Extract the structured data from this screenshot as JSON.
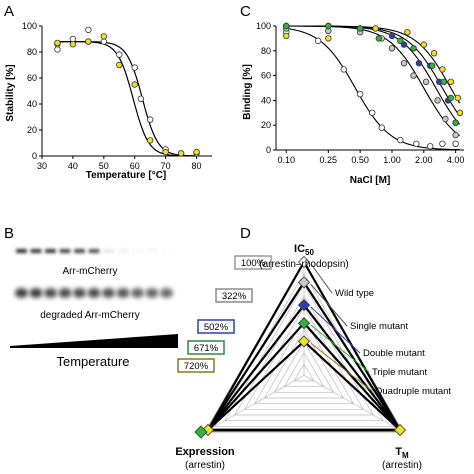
{
  "panels": {
    "A": "A",
    "B": "B",
    "C": "C",
    "D": "D"
  },
  "colors": {
    "yellow": "#f2e21e",
    "green": "#2fb53a",
    "blue": "#2b3fb6",
    "white": "#ffffff",
    "grey": "#c8c8c8",
    "wt_box": "#9a9a9a",
    "single_box": "#8a8a8a",
    "double_box": "#2b3fb6",
    "triple_box": "#2f8a3a",
    "quad_box": "#8a7a1a"
  },
  "chart_data": [
    {
      "panel": "A",
      "type": "scatter",
      "xlabel": "Temperature [°C]",
      "ylabel": "Stability [%]",
      "xlim": [
        30,
        85
      ],
      "ylim": [
        0,
        100
      ],
      "xticks": [
        "30",
        "40",
        "50",
        "60",
        "70",
        "80"
      ],
      "yticks": [
        "0",
        "20",
        "40",
        "60",
        "80",
        "100"
      ],
      "series": [
        {
          "marker": "white",
          "points": [
            [
              35,
              82
            ],
            [
              35,
              86
            ],
            [
              40,
              90
            ],
            [
              45,
              97
            ],
            [
              45,
              88
            ],
            [
              50,
              88
            ],
            [
              55,
              78
            ],
            [
              60,
              68
            ],
            [
              62,
              44
            ],
            [
              65,
              28
            ],
            [
              70,
              5
            ],
            [
              75,
              2
            ],
            [
              80,
              2
            ]
          ],
          "fit_tm": 62.5,
          "fit_top": 88,
          "fit_slope": 2.5
        },
        {
          "marker": "yellow",
          "points": [
            [
              35,
              87
            ],
            [
              40,
              86
            ],
            [
              45,
              88
            ],
            [
              50,
              92
            ],
            [
              55,
              70
            ],
            [
              60,
              55
            ],
            [
              65,
              12
            ],
            [
              70,
              3
            ],
            [
              75,
              2
            ],
            [
              80,
              3
            ]
          ],
          "fit_tm": 59.5,
          "fit_top": 88,
          "fit_slope": 2.5
        }
      ]
    },
    {
      "panel": "C",
      "type": "scatter",
      "xlabel": "NaCl [M]",
      "ylabel": "Binding [%]",
      "xscale": "log",
      "xlim": [
        0.08,
        4.8
      ],
      "ylim": [
        0,
        100
      ],
      "xticks": [
        "0.10",
        "0.25",
        "0.50",
        "1.00",
        "2.00",
        "4.00"
      ],
      "xtick_values": [
        0.1,
        0.25,
        0.5,
        1.0,
        2.0,
        4.0
      ],
      "yticks": [
        "0",
        "20",
        "40",
        "60",
        "80",
        "100"
      ],
      "series": [
        {
          "marker": "white",
          "points": [
            [
              0.1,
              100
            ],
            [
              0.1,
              95
            ],
            [
              0.2,
              88
            ],
            [
              0.35,
              65
            ],
            [
              0.5,
              45
            ],
            [
              0.65,
              30
            ],
            [
              0.8,
              18
            ],
            [
              1.2,
              8
            ],
            [
              1.7,
              5
            ],
            [
              2.3,
              3
            ],
            [
              3.0,
              5
            ],
            [
              4.0,
              5
            ]
          ],
          "fit_ic50": 0.45
        },
        {
          "marker": "grey",
          "points": [
            [
              0.1,
              98
            ],
            [
              0.25,
              96
            ],
            [
              0.5,
              95
            ],
            [
              0.8,
              90
            ],
            [
              1.0,
              82
            ],
            [
              1.3,
              70
            ],
            [
              1.6,
              60
            ],
            [
              2.1,
              55
            ],
            [
              2.7,
              40
            ],
            [
              3.2,
              25
            ],
            [
              4.0,
              12
            ]
          ],
          "fit_ic50": 2.0
        },
        {
          "marker": "blue",
          "points": [
            [
              0.1,
              100
            ],
            [
              0.25,
              100
            ],
            [
              0.5,
              98
            ],
            [
              1.0,
              92
            ],
            [
              1.3,
              85
            ],
            [
              1.8,
              70
            ],
            [
              2.3,
              68
            ],
            [
              2.8,
              55
            ],
            [
              3.4,
              40
            ],
            [
              4.0,
              22
            ]
          ],
          "fit_ic50": 2.6
        },
        {
          "marker": "green",
          "points": [
            [
              0.1,
              100
            ],
            [
              0.25,
              100
            ],
            [
              0.5,
              98
            ],
            [
              0.75,
              90
            ],
            [
              1.2,
              88
            ],
            [
              1.6,
              82
            ],
            [
              2.4,
              68
            ],
            [
              3.1,
              55
            ],
            [
              3.6,
              42
            ],
            [
              4.0,
              22
            ]
          ],
          "fit_ic50": 3.0
        },
        {
          "marker": "yellow",
          "points": [
            [
              0.1,
              92
            ],
            [
              0.25,
              90
            ],
            [
              0.7,
              98
            ],
            [
              1.4,
              95
            ],
            [
              2.0,
              85
            ],
            [
              2.5,
              78
            ],
            [
              3.0,
              65
            ],
            [
              3.6,
              55
            ],
            [
              4.2,
              42
            ],
            [
              4.4,
              30
            ]
          ],
          "fit_ic50": 3.6
        }
      ]
    }
  ],
  "gel": {
    "band_label_top": "Arr-mCherry",
    "band_label_bottom": "degraded Arr-mCherry",
    "gradient_label": "Temperature",
    "top_lane_intensity": [
      0.85,
      0.8,
      0.8,
      0.75,
      0.75,
      0.7,
      0.1,
      0.05,
      0.03,
      0.03,
      0.02
    ],
    "bottom_lane_intensity": [
      0.75,
      0.75,
      0.7,
      0.7,
      0.7,
      0.7,
      0.68,
      0.65,
      0.6,
      0.6,
      0.58
    ]
  },
  "radar": {
    "top_title_main": "IC",
    "top_title_sub": "50",
    "top_subtitle": "(arrestin–rhodopsin)",
    "left_title": "Expression",
    "left_subtitle": "(arrestin)",
    "right_title_main": "T",
    "right_title_sub": "M",
    "right_subtitle": "(arrestin)",
    "labels": [
      "Wild type",
      "Single mutant",
      "Double mutant",
      "Triple mutant",
      "Quadruple mutant"
    ],
    "percentages": [
      "100%",
      "322%",
      "502%",
      "671%",
      "720%"
    ],
    "ic50_levels": [
      1.0,
      0.82,
      0.62,
      0.46,
      0.3
    ]
  }
}
